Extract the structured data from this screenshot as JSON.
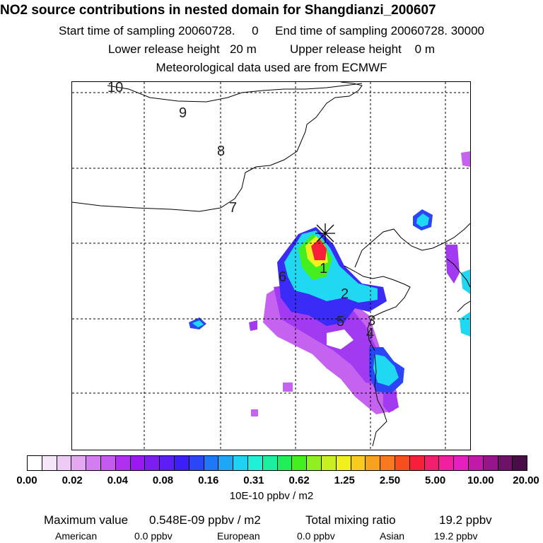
{
  "header": {
    "title": "NO2 source contributions in nested domain for Shangdianzi_200607",
    "sampling_line": "Start time of sampling 20060728.     0     End time of sampling 20060728. 30000",
    "release_line": "Lower release height   20 m          Upper release height    0 m",
    "met_line": "Meteorological data used are from ECMWF"
  },
  "map": {
    "contour_labels": [
      "10",
      "9",
      "8",
      "7",
      "6",
      "1",
      "2",
      "3",
      "5",
      "4"
    ],
    "receptor_marker": "star-cross-icon",
    "colors": {
      "coast": "#000000",
      "grid": "#000000"
    }
  },
  "colorbar": {
    "colors": [
      "#ffffff",
      "#f6e6fa",
      "#eecbf7",
      "#e4a8f3",
      "#d47df0",
      "#c55af0",
      "#b030f0",
      "#9a19f2",
      "#7c1ef2",
      "#5b1ff4",
      "#3c1ff7",
      "#2a46f7",
      "#1f78f7",
      "#1fa7f7",
      "#1fd2f2",
      "#1ff0d8",
      "#1cf0a0",
      "#20ef5a",
      "#44ef20",
      "#90ef20",
      "#c8ef1f",
      "#f2ef1f",
      "#f7cb1f",
      "#f7a21f",
      "#f77a1f",
      "#f74d1f",
      "#f71f3a",
      "#f21f6f",
      "#f21fa0",
      "#e61fc0",
      "#c21aa8",
      "#96158a",
      "#6d1266",
      "#4b0d47"
    ],
    "tick_labels": [
      "0.00",
      "0.02",
      "0.04",
      "0.08",
      "0.16",
      "0.31",
      "0.62",
      "1.25",
      "2.50",
      "5.00",
      "10.00",
      "20.00"
    ],
    "units": "10E-10 ppbv / m2"
  },
  "summary": {
    "max_label": "Maximum value",
    "max_value": "0.548E-09 ppbv / m2",
    "total_label": "Total mixing ratio",
    "total_value": "19.2 ppbv",
    "american_label": "American",
    "american_value": "0.0 ppbv",
    "european_label": "European",
    "european_value": "0.0 ppbv",
    "asian_label": "Asian",
    "asian_value": "19.2 ppbv"
  }
}
